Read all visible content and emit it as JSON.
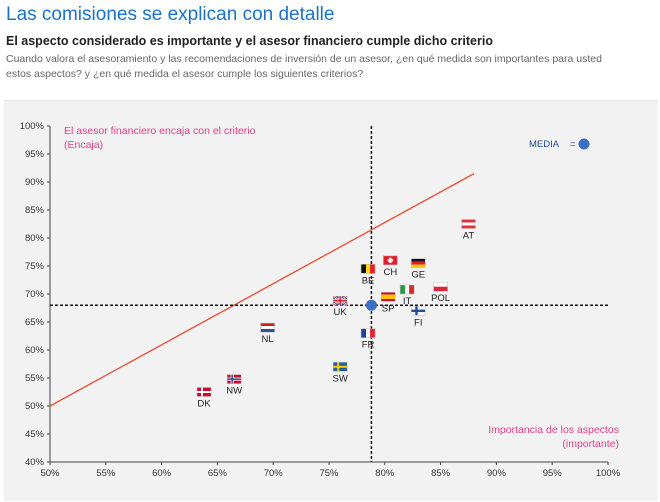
{
  "header": {
    "title": "Las comisiones se explican con detalle",
    "subtitle": "El aspecto considerado es importante y el asesor financiero cumple dicho criterio",
    "description": "Cuando valora el asesoramiento y las recomendaciones de inversión de un asesor, ¿en qué medida son importantes para usted estos aspectos? y ¿en qué medida el asesor cumple los siguientes criterios?"
  },
  "chart_data": {
    "type": "scatter",
    "x_ticks": [
      "50%",
      "55%",
      "60%",
      "65%",
      "70%",
      "75%",
      "80%",
      "85%",
      "90%",
      "95%",
      "100%"
    ],
    "y_ticks": [
      "100%",
      "95%",
      "90%",
      "85%",
      "80%",
      "75%",
      "70%",
      "65%",
      "60%",
      "55%",
      "50%",
      "45%",
      "40%"
    ],
    "xlim": [
      50,
      100
    ],
    "ylim": [
      40,
      100
    ],
    "quadrant_label_top": [
      "El asesor financiero encaja con el criterio",
      "(Encaja)"
    ],
    "quadrant_label_bottom": [
      "Importancia de los aspectos",
      "(importante)"
    ],
    "legend": {
      "label": "MEDIA",
      "marker": "=",
      "color": "#3a6fc4"
    },
    "mean": {
      "x": 78.8,
      "y": 68
    },
    "reference_line": {
      "from": [
        50,
        50
      ],
      "to": [
        88,
        91.5
      ],
      "color": "#e8553d"
    },
    "points": [
      {
        "label": "AT",
        "x": 87.5,
        "y": 82.5,
        "flag": "at"
      },
      {
        "label": "CH",
        "x": 80.5,
        "y": 76,
        "flag": "ch"
      },
      {
        "label": "GE",
        "x": 83,
        "y": 75.5,
        "flag": "ge"
      },
      {
        "label": "BE",
        "x": 78.5,
        "y": 74.5,
        "flag": "be"
      },
      {
        "label": "POL",
        "x": 85,
        "y": 71.3,
        "flag": "pol"
      },
      {
        "label": "IT",
        "x": 82,
        "y": 70.8,
        "flag": "it"
      },
      {
        "label": "SP",
        "x": 80.3,
        "y": 69.5,
        "flag": "sp"
      },
      {
        "label": "UK",
        "x": 76,
        "y": 68.8,
        "flag": "uk"
      },
      {
        "label": "FI",
        "x": 83,
        "y": 67,
        "flag": "fi"
      },
      {
        "label": "NL",
        "x": 69.5,
        "y": 64,
        "flag": "nl"
      },
      {
        "label": "FR",
        "x": 78.5,
        "y": 63,
        "flag": "fr"
      },
      {
        "label": "SW",
        "x": 76,
        "y": 57,
        "flag": "sw"
      },
      {
        "label": "NW",
        "x": 66.5,
        "y": 54.8,
        "flag": "nw"
      },
      {
        "label": "DK",
        "x": 63.8,
        "y": 52.5,
        "flag": "dk"
      }
    ],
    "colors": {
      "mean": "#3a6fc4",
      "reference_line": "#e8553d",
      "quadrant_text": "#e0418c",
      "divider": "#111111"
    }
  }
}
